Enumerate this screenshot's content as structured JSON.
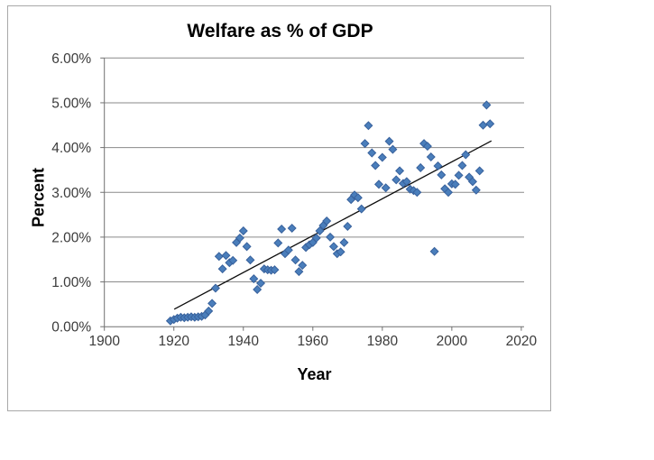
{
  "chart": {
    "title": "Welfare as % of GDP",
    "x_axis": {
      "label": "Year",
      "tick_labels": [
        "1900",
        "1920",
        "1940",
        "1960",
        "1980",
        "2000",
        "2020"
      ]
    },
    "y_axis": {
      "label": "Percent",
      "tick_labels": [
        "0.00%",
        "1.00%",
        "2.00%",
        "3.00%",
        "4.00%",
        "5.00%",
        "6.00%"
      ]
    },
    "colors": {
      "marker_fill": "#4A7EBB",
      "marker_edge": "#38619C",
      "trendline": "#0d0d0d",
      "gridline": "#8a8a8a",
      "axis_line": "#707070",
      "tick_text": "#3b3b3b",
      "frame_border": "#a8a8a8",
      "background": "#ffffff"
    }
  },
  "chart_data": {
    "type": "scatter",
    "title": "Welfare as % of GDP",
    "xlabel": "Year",
    "ylabel": "Percent",
    "xlim": [
      1900,
      2020
    ],
    "ylim": [
      0,
      6
    ],
    "x_ticks": [
      1900,
      1920,
      1940,
      1960,
      1980,
      2000,
      2020
    ],
    "y_ticks": [
      0,
      1,
      2,
      3,
      4,
      5,
      6
    ],
    "y_tick_format": "percent_2dp",
    "grid": "horizontal",
    "legend": "none",
    "marker": "diamond",
    "series": [
      {
        "name": "Welfare as % of GDP",
        "points": [
          [
            1919,
            0.13
          ],
          [
            1920,
            0.16
          ],
          [
            1921,
            0.19
          ],
          [
            1922,
            0.21
          ],
          [
            1923,
            0.2
          ],
          [
            1924,
            0.21
          ],
          [
            1925,
            0.22
          ],
          [
            1926,
            0.21
          ],
          [
            1927,
            0.22
          ],
          [
            1928,
            0.23
          ],
          [
            1929,
            0.26
          ],
          [
            1930,
            0.35
          ],
          [
            1931,
            0.52
          ],
          [
            1932,
            0.86
          ],
          [
            1933,
            1.57
          ],
          [
            1934,
            1.29
          ],
          [
            1935,
            1.59
          ],
          [
            1936,
            1.43
          ],
          [
            1937,
            1.48
          ],
          [
            1938,
            1.88
          ],
          [
            1939,
            1.98
          ],
          [
            1940,
            2.14
          ],
          [
            1941,
            1.79
          ],
          [
            1942,
            1.49
          ],
          [
            1943,
            1.07
          ],
          [
            1944,
            0.83
          ],
          [
            1945,
            0.97
          ],
          [
            1946,
            1.29
          ],
          [
            1947,
            1.27
          ],
          [
            1948,
            1.26
          ],
          [
            1949,
            1.27
          ],
          [
            1950,
            1.87
          ],
          [
            1951,
            2.18
          ],
          [
            1952,
            1.63
          ],
          [
            1953,
            1.71
          ],
          [
            1954,
            2.2
          ],
          [
            1955,
            1.49
          ],
          [
            1956,
            1.23
          ],
          [
            1957,
            1.37
          ],
          [
            1958,
            1.77
          ],
          [
            1959,
            1.83
          ],
          [
            1960,
            1.88
          ],
          [
            1961,
            1.98
          ],
          [
            1962,
            2.14
          ],
          [
            1963,
            2.26
          ],
          [
            1964,
            2.36
          ],
          [
            1965,
            2.0
          ],
          [
            1966,
            1.79
          ],
          [
            1967,
            1.63
          ],
          [
            1968,
            1.67
          ],
          [
            1969,
            1.88
          ],
          [
            1970,
            2.24
          ],
          [
            1971,
            2.84
          ],
          [
            1972,
            2.94
          ],
          [
            1973,
            2.88
          ],
          [
            1974,
            2.63
          ],
          [
            1975,
            4.09
          ],
          [
            1976,
            4.49
          ],
          [
            1977,
            3.88
          ],
          [
            1978,
            3.6
          ],
          [
            1979,
            3.18
          ],
          [
            1980,
            3.78
          ],
          [
            1981,
            3.1
          ],
          [
            1982,
            4.14
          ],
          [
            1983,
            3.96
          ],
          [
            1984,
            3.28
          ],
          [
            1985,
            3.48
          ],
          [
            1986,
            3.2
          ],
          [
            1987,
            3.24
          ],
          [
            1988,
            3.07
          ],
          [
            1989,
            3.04
          ],
          [
            1990,
            3.0
          ],
          [
            1991,
            3.55
          ],
          [
            1992,
            4.09
          ],
          [
            1993,
            4.03
          ],
          [
            1994,
            3.79
          ],
          [
            1995,
            1.68
          ],
          [
            1996,
            3.59
          ],
          [
            1997,
            3.39
          ],
          [
            1998,
            3.08
          ],
          [
            1999,
            3.0
          ],
          [
            2000,
            3.19
          ],
          [
            2001,
            3.18
          ],
          [
            2002,
            3.38
          ],
          [
            2003,
            3.6
          ],
          [
            2004,
            3.84
          ],
          [
            2005,
            3.34
          ],
          [
            2006,
            3.24
          ],
          [
            2007,
            3.05
          ],
          [
            2008,
            3.48
          ],
          [
            2009,
            4.5
          ],
          [
            2010,
            4.95
          ],
          [
            2011,
            4.53
          ]
        ]
      }
    ],
    "trendline": {
      "x1": 1920.1,
      "y1": 0.39,
      "x2": 2011.4,
      "y2": 4.15
    }
  }
}
